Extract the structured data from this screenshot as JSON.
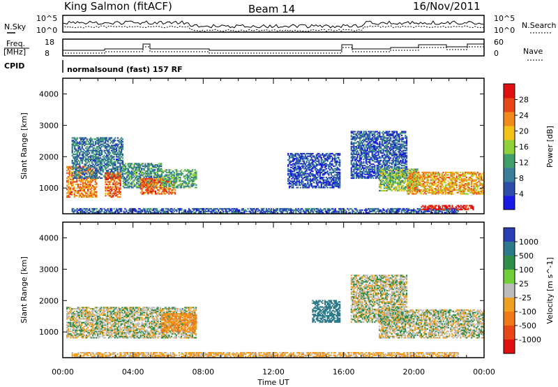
{
  "header": {
    "station": "King Salmon (fitACF)",
    "beam": "Beam 14",
    "date": "16/Nov/2011"
  },
  "strip_labels": {
    "nsky": "N.Sky",
    "nsearch": "N.Search",
    "freq_line1": "Freq.",
    "freq_line2": "[MHz]",
    "nave": "Nave",
    "cpid": "CPID",
    "program": "normalsound (fast) 157 RF",
    "noise_ticks_left": [
      "10^5",
      "10^0"
    ],
    "noise_ticks_right": [
      "10^5",
      "10^0"
    ],
    "freq_ticks": [
      "18",
      "8"
    ],
    "nave_ticks": [
      "60",
      "0"
    ]
  },
  "colors": {
    "power_scale": [
      "#1a1ae6",
      "#2d4ea8",
      "#3a7f9a",
      "#3f9f6a",
      "#8fd13b",
      "#f2c21a",
      "#f08a1a",
      "#e84818",
      "#e01010"
    ],
    "velocity_scale": [
      "#2a3fb5",
      "#2c7a8a",
      "#2f8e4a",
      "#72cf3a",
      "#bcbcbc",
      "#f0a020",
      "#f07a18",
      "#e84818",
      "#e01010"
    ]
  },
  "chart_data": [
    {
      "type": "heatmap",
      "title": "",
      "xlabel": "Time UT",
      "ylabel": "Slant Range [km]",
      "x_ticks": [
        "00:00",
        "04:00",
        "08:00",
        "12:00",
        "16:00",
        "20:00",
        "00:00"
      ],
      "y_ticks": [
        1000,
        2000,
        3000,
        4000
      ],
      "x_range_hours": [
        0,
        24
      ],
      "y_range_km": [
        180,
        4500
      ],
      "colorbar": {
        "label": "Power [dB]",
        "ticks": [
          "4",
          "8",
          "12",
          "16",
          "20",
          "24",
          "28"
        ],
        "range": [
          0,
          30
        ]
      },
      "echo_regions": [
        {
          "t0": 0.2,
          "t1": 1.9,
          "r0": 700,
          "r1": 1700,
          "value": 22
        },
        {
          "t0": 0.5,
          "t1": 3.4,
          "r0": 1300,
          "r1": 2600,
          "value": 8
        },
        {
          "t0": 2.4,
          "t1": 3.3,
          "r0": 700,
          "r1": 1500,
          "value": 24
        },
        {
          "t0": 3.4,
          "t1": 5.6,
          "r0": 1000,
          "r1": 1800,
          "value": 10
        },
        {
          "t0": 4.4,
          "t1": 6.4,
          "r0": 800,
          "r1": 1300,
          "value": 24
        },
        {
          "t0": 5.6,
          "t1": 7.6,
          "r0": 1000,
          "r1": 1600,
          "value": 12
        },
        {
          "t0": 0.5,
          "t1": 22.5,
          "r0": 200,
          "r1": 350,
          "value": 6
        },
        {
          "t0": 12.8,
          "t1": 15.8,
          "r0": 1000,
          "r1": 2100,
          "value": 5
        },
        {
          "t0": 16.4,
          "t1": 19.6,
          "r0": 1300,
          "r1": 2800,
          "value": 6
        },
        {
          "t0": 18.0,
          "t1": 20.2,
          "r0": 900,
          "r1": 1600,
          "value": 14
        },
        {
          "t0": 19.6,
          "t1": 24.0,
          "r0": 800,
          "r1": 1500,
          "value": 20
        },
        {
          "t0": 20.4,
          "t1": 23.4,
          "r0": 300,
          "r1": 450,
          "value": 28
        }
      ]
    },
    {
      "type": "heatmap",
      "title": "",
      "xlabel": "Time UT",
      "ylabel": "Slant Range [km]",
      "x_ticks": [
        "00:00",
        "04:00",
        "08:00",
        "12:00",
        "16:00",
        "20:00",
        "00:00"
      ],
      "y_ticks": [
        1000,
        2000,
        3000,
        4000
      ],
      "x_range_hours": [
        0,
        24
      ],
      "y_range_km": [
        180,
        4500
      ],
      "colorbar": {
        "label": "Velocity [m s^-1]",
        "ticks": [
          "1000",
          "500",
          "100",
          "25",
          "-25",
          "-100",
          "-500",
          "-1000"
        ],
        "range": [
          -1000,
          1000
        ]
      },
      "echo_regions": [
        {
          "t0": 0.2,
          "t1": 7.6,
          "r0": 800,
          "r1": 1800,
          "value": 0
        },
        {
          "t0": 5.6,
          "t1": 7.6,
          "r0": 1000,
          "r1": 1600,
          "value": -100
        },
        {
          "t0": 0.5,
          "t1": 22.5,
          "r0": 200,
          "r1": 350,
          "value": -50
        },
        {
          "t0": 14.2,
          "t1": 15.8,
          "r0": 1300,
          "r1": 2000,
          "value": 200
        },
        {
          "t0": 16.4,
          "t1": 19.6,
          "r0": 1300,
          "r1": 2800,
          "value": 0
        },
        {
          "t0": 18.0,
          "t1": 24.0,
          "r0": 800,
          "r1": 1700,
          "value": 0
        }
      ]
    }
  ]
}
